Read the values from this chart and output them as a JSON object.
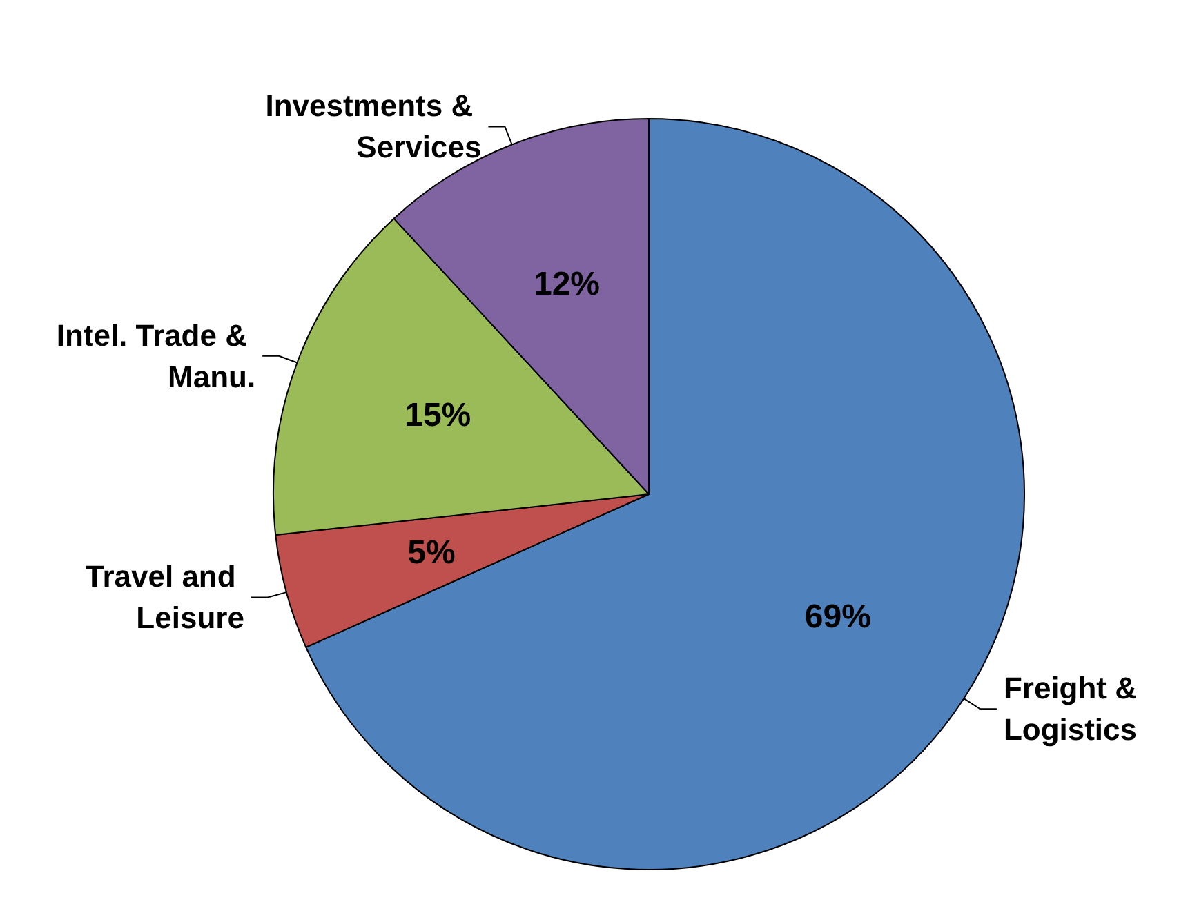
{
  "chart_data": {
    "type": "pie",
    "categories": [
      "Freight & Logistics",
      "Travel and Leisure",
      "Intel. Trade & Manu.",
      "Investments & Services"
    ],
    "values": [
      69,
      5,
      15,
      12
    ],
    "value_labels": [
      "69%",
      "5%",
      "15%",
      "12%"
    ],
    "colors": [
      "#4f81bd",
      "#c0504d",
      "#9bbb59",
      "#8064a2"
    ],
    "legend": false
  }
}
